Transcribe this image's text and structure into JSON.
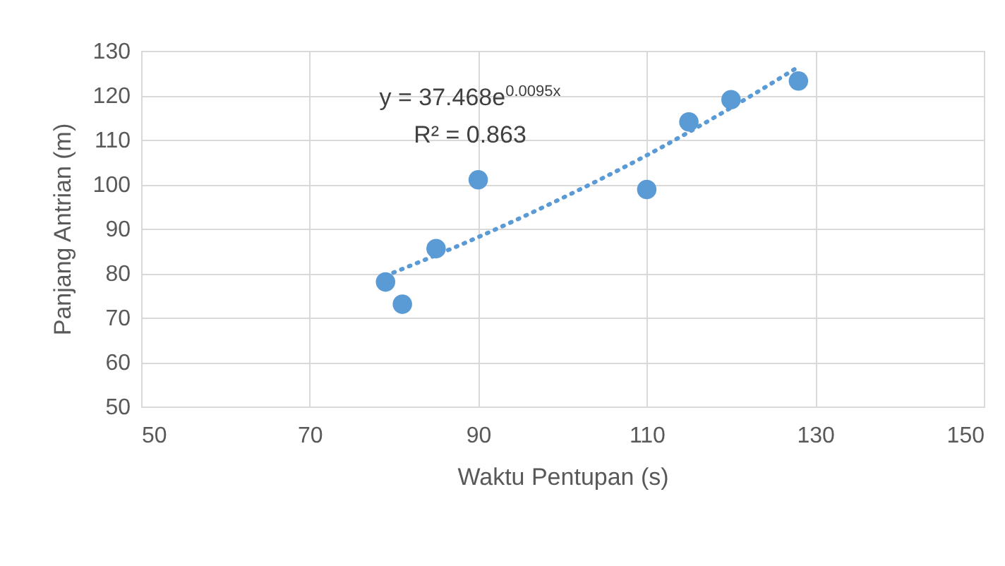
{
  "chart_data": {
    "type": "scatter",
    "xlabel": "Waktu Pentupan (s)",
    "ylabel": "Panjang Antrian (m)",
    "annotations": [
      "y = 37.468e$^{0.0095x}$",
      "R² = 0.863"
    ],
    "x": [
      79,
      81,
      85,
      90,
      110,
      115,
      120,
      128
    ],
    "series": [
      {
        "color": "#5b9bd5",
        "marker": "circle",
        "values": [
          78,
          73,
          85.5,
          101,
          98.8,
          114,
          119,
          123.2
        ]
      },
      {
        "type": "line",
        "color": "#5b9bd5",
        "line_style": "dotted",
        "marker": "none",
        "x": [
          79,
          90,
          100,
          110,
          120,
          128
        ],
        "values": [
          79.4,
          88.1,
          96.9,
          106.5,
          117.2,
          126.4
        ]
      }
    ],
    "xlim": [
      50,
      150
    ],
    "xticks": [
      50,
      70,
      90,
      110,
      130,
      150
    ],
    "ylim": [
      50,
      130
    ],
    "yticks": [
      50,
      60,
      70,
      80,
      90,
      100,
      110,
      120,
      130
    ],
    "grid": true
  }
}
